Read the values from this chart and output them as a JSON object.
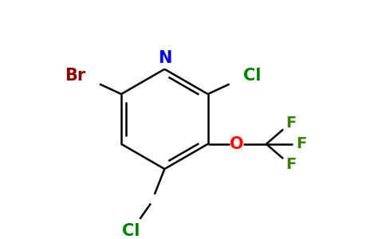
{
  "background_color": "#ffffff",
  "bond_color": "#000000",
  "atom_colors": {
    "N": "#0000dd",
    "Br": "#8b0000",
    "Cl": "#008000",
    "O": "#ff0000",
    "F": "#3a7d00"
  },
  "figsize": [
    4.84,
    3.0
  ],
  "dpi": 100,
  "lw": 1.8,
  "off": 4.0
}
